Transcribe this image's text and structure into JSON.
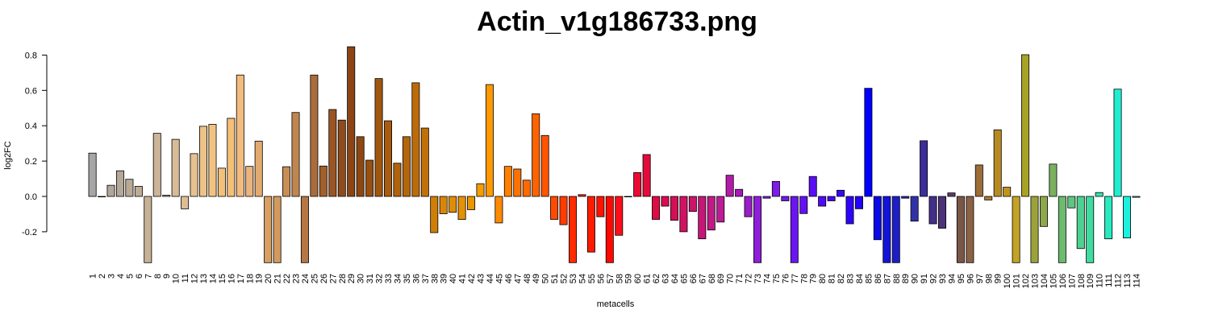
{
  "chart_data": {
    "type": "bar",
    "title": "Actin_v1g186733.png",
    "xlabel": "metacells",
    "ylabel": "log2FC",
    "ylim": [
      -0.38,
      0.85
    ],
    "yticks": [
      "-0.2",
      "0.0",
      "0.2",
      "0.4",
      "0.6",
      "0.8"
    ],
    "grid": false,
    "legend": "none",
    "categories": [
      "1",
      "2",
      "3",
      "4",
      "5",
      "6",
      "7",
      "8",
      "9",
      "10",
      "11",
      "12",
      "13",
      "14",
      "15",
      "16",
      "17",
      "18",
      "19",
      "20",
      "21",
      "22",
      "23",
      "24",
      "25",
      "26",
      "27",
      "28",
      "29",
      "30",
      "31",
      "32",
      "33",
      "34",
      "35",
      "36",
      "37",
      "38",
      "39",
      "40",
      "41",
      "42",
      "43",
      "44",
      "45",
      "46",
      "47",
      "48",
      "49",
      "50",
      "51",
      "52",
      "53",
      "54",
      "55",
      "56",
      "57",
      "58",
      "59",
      "60",
      "61",
      "62",
      "63",
      "64",
      "65",
      "66",
      "67",
      "68",
      "69",
      "70",
      "71",
      "72",
      "73",
      "74",
      "75",
      "76",
      "77",
      "78",
      "79",
      "80",
      "81",
      "82",
      "83",
      "84",
      "85",
      "86",
      "87",
      "88",
      "89",
      "90",
      "91",
      "92",
      "93",
      "94",
      "95",
      "96",
      "97",
      "98",
      "99",
      "100",
      "101",
      "102",
      "103",
      "104",
      "105",
      "106",
      "107",
      "108",
      "109",
      "110",
      "111",
      "112",
      "113",
      "114"
    ],
    "values": [
      0.245,
      0.0,
      0.063,
      0.145,
      0.097,
      0.057,
      -0.375,
      0.357,
      0.007,
      0.323,
      -0.07,
      0.242,
      0.397,
      0.408,
      0.16,
      0.442,
      0.687,
      0.17,
      0.313,
      -0.375,
      -0.375,
      0.168,
      0.475,
      -0.375,
      0.687,
      0.172,
      0.492,
      0.432,
      0.847,
      0.338,
      0.205,
      0.667,
      0.428,
      0.188,
      0.338,
      0.643,
      0.387,
      -0.205,
      -0.098,
      -0.09,
      -0.13,
      -0.075,
      0.072,
      0.633,
      -0.15,
      0.17,
      0.155,
      0.092,
      0.468,
      0.345,
      -0.13,
      -0.16,
      -0.375,
      0.01,
      -0.315,
      -0.115,
      -0.375,
      -0.22,
      0.0,
      0.135,
      0.237,
      -0.13,
      -0.055,
      -0.135,
      -0.2,
      -0.085,
      -0.24,
      -0.19,
      -0.145,
      0.12,
      0.04,
      -0.115,
      -0.375,
      -0.01,
      0.085,
      -0.025,
      -0.375,
      -0.097,
      0.113,
      -0.055,
      -0.025,
      0.035,
      -0.155,
      -0.07,
      0.612,
      -0.245,
      -0.375,
      -0.375,
      -0.01,
      -0.14,
      0.315,
      -0.155,
      -0.18,
      0.02,
      -0.375,
      -0.375,
      0.178,
      -0.02,
      0.377,
      0.052,
      -0.375,
      0.802,
      -0.375,
      -0.17,
      0.183,
      -0.375,
      -0.065,
      -0.295,
      -0.375,
      0.022,
      -0.24,
      0.607,
      -0.235,
      -0.005
    ],
    "colors": [
      "#a6a6a6",
      "#aba7a1",
      "#b0a79b",
      "#b4a898",
      "#b9a995",
      "#bfab93",
      "#c6b195",
      "#cbb497",
      "#d0b897",
      "#d8bb97",
      "#ddbd96",
      "#e6c18f",
      "#ecc388",
      "#f1c382",
      "#f3c17c",
      "#f5bf78",
      "#f3bc7e",
      "#ebb47d",
      "#e3aa70",
      "#d89f63",
      "#d29a5e",
      "#c98e54",
      "#c0864f",
      "#b57744",
      "#aa6c3c",
      "#a1602c",
      "#9a5524",
      "#8f4b1a",
      "#8b4513",
      "#8d4812",
      "#975011",
      "#a0560f",
      "#a85c0f",
      "#b0620d",
      "#b4660c",
      "#bc6b0a",
      "#c27108",
      "#cf7e06",
      "#da8504",
      "#e18c05",
      "#e49105",
      "#ea9502",
      "#f49d01",
      "#ff9900",
      "#ff8a00",
      "#ff8000",
      "#ff7200",
      "#ff6a00",
      "#ff6300",
      "#ff5400",
      "#ff4a00",
      "#ff3b00",
      "#ff2c00",
      "#ff2200",
      "#ff1b00",
      "#ff1300",
      "#ff0800",
      "#ff0e1a",
      "#f50a2a",
      "#ea0a32",
      "#e30b3a",
      "#dd0c45",
      "#d80d50",
      "#d40f58",
      "#cf1262",
      "#cb146c",
      "#c61678",
      "#c11a87",
      "#bd1c96",
      "#b21aa7",
      "#a51ab8",
      "#9a1ec8",
      "#8f1ed9",
      "#8a1ee3",
      "#7f1de8",
      "#7419ec",
      "#6b15f0",
      "#6411f2",
      "#5a0df4",
      "#500af5",
      "#4608f6",
      "#3a06f7",
      "#2e04f8",
      "#2302f9",
      "#0000ff",
      "#0a0ae8",
      "#1414d8",
      "#1e1ec8",
      "#2828b8",
      "#3232a8",
      "#3c2e98",
      "#442f88",
      "#4c3378",
      "#5a3d6a",
      "#7a5646",
      "#8b6244",
      "#9c6d36",
      "#ae7a2a",
      "#b88a22",
      "#c0951e",
      "#c3a324",
      "#a8a327",
      "#9ca23a",
      "#8da84c",
      "#7bb05e",
      "#6cbb6f",
      "#5ec680",
      "#4ed190",
      "#3edca1",
      "#32e4b0",
      "#28eac0",
      "#20edd0",
      "#1ef0dd",
      "#1cf2e8"
    ]
  }
}
